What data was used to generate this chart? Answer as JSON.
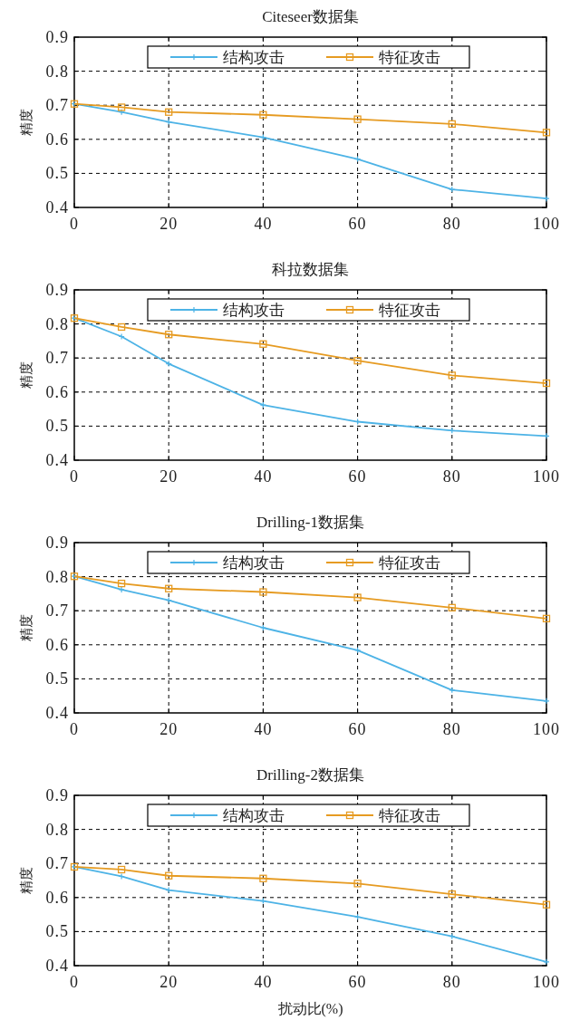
{
  "chart_data": [
    {
      "type": "line",
      "title": "Citeseer数据集",
      "ylabel": "精度",
      "x": [
        0,
        10,
        20,
        40,
        60,
        80,
        100
      ],
      "xlim": [
        0,
        100
      ],
      "ylim": [
        0.4,
        0.9
      ],
      "xticks": [
        0,
        20,
        40,
        60,
        80,
        100
      ],
      "yticks": [
        0.4,
        0.5,
        0.6,
        0.7,
        0.8,
        0.9
      ],
      "grid": true,
      "legend": "top",
      "series": [
        {
          "name": "结构攻击",
          "color": "#4db3e6",
          "marker": "cross",
          "values": [
            0.704,
            0.68,
            0.651,
            0.606,
            0.542,
            0.453,
            0.426
          ]
        },
        {
          "name": "特征攻击",
          "color": "#e69b22",
          "marker": "square",
          "values": [
            0.704,
            0.694,
            0.68,
            0.672,
            0.659,
            0.645,
            0.62
          ]
        }
      ]
    },
    {
      "type": "line",
      "title": "科拉数据集",
      "ylabel": "精度",
      "x": [
        0,
        10,
        20,
        40,
        60,
        80,
        100
      ],
      "xlim": [
        0,
        100
      ],
      "ylim": [
        0.4,
        0.9
      ],
      "xticks": [
        0,
        20,
        40,
        60,
        80,
        100
      ],
      "yticks": [
        0.4,
        0.5,
        0.6,
        0.7,
        0.8,
        0.9
      ],
      "grid": true,
      "legend": "top",
      "series": [
        {
          "name": "结构攻击",
          "color": "#4db3e6",
          "marker": "cross",
          "values": [
            0.817,
            0.763,
            0.683,
            0.562,
            0.513,
            0.487,
            0.471
          ]
        },
        {
          "name": "特征攻击",
          "color": "#e69b22",
          "marker": "square",
          "values": [
            0.817,
            0.791,
            0.769,
            0.741,
            0.692,
            0.649,
            0.626
          ]
        }
      ]
    },
    {
      "type": "line",
      "title": "Drilling-1数据集",
      "ylabel": "精度",
      "x": [
        0,
        10,
        20,
        40,
        60,
        80,
        100
      ],
      "xlim": [
        0,
        100
      ],
      "ylim": [
        0.4,
        0.9
      ],
      "xticks": [
        0,
        20,
        40,
        60,
        80,
        100
      ],
      "yticks": [
        0.4,
        0.5,
        0.6,
        0.7,
        0.8,
        0.9
      ],
      "grid": true,
      "legend": "top",
      "series": [
        {
          "name": "结构攻击",
          "color": "#4db3e6",
          "marker": "cross",
          "values": [
            0.801,
            0.762,
            0.731,
            0.65,
            0.584,
            0.467,
            0.435
          ]
        },
        {
          "name": "特征攻击",
          "color": "#e69b22",
          "marker": "square",
          "values": [
            0.801,
            0.78,
            0.765,
            0.755,
            0.739,
            0.709,
            0.677
          ]
        }
      ]
    },
    {
      "type": "line",
      "title": "Drilling-2数据集",
      "xlabel": "扰动比(%)",
      "ylabel": "精度",
      "x": [
        0,
        10,
        20,
        40,
        60,
        80,
        100
      ],
      "xlim": [
        0,
        100
      ],
      "ylim": [
        0.4,
        0.9
      ],
      "xticks": [
        0,
        20,
        40,
        60,
        80,
        100
      ],
      "yticks": [
        0.4,
        0.5,
        0.6,
        0.7,
        0.8,
        0.9
      ],
      "grid": true,
      "legend": "top",
      "series": [
        {
          "name": "结构攻击",
          "color": "#4db3e6",
          "marker": "cross",
          "values": [
            0.69,
            0.662,
            0.622,
            0.59,
            0.543,
            0.486,
            0.411
          ]
        },
        {
          "name": "特征攻击",
          "color": "#e69b22",
          "marker": "square",
          "values": [
            0.69,
            0.682,
            0.664,
            0.656,
            0.641,
            0.61,
            0.579
          ]
        }
      ]
    }
  ]
}
